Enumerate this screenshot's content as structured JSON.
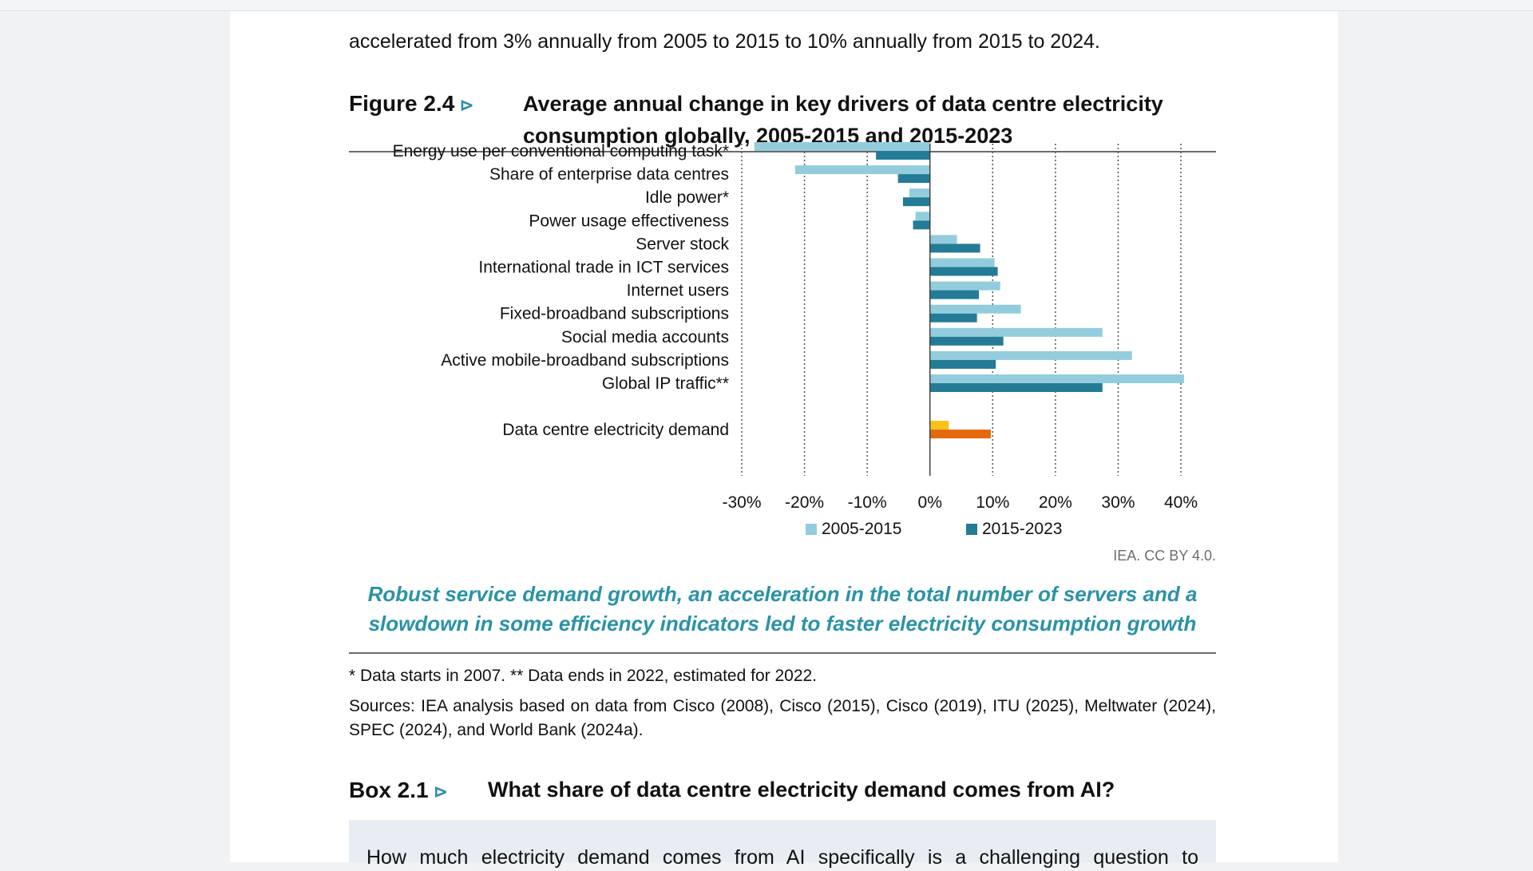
{
  "intro_text": "accelerated from 3% annually from 2005 to 2015 to 10% annually from 2015 to 2024.",
  "figure": {
    "label": "Figure 2.4",
    "marker": "⊳",
    "title": "Average annual change in key drivers of data centre electricity consumption globally, 2005-2015 and 2015-2023"
  },
  "chart_data": {
    "type": "bar",
    "orientation": "horizontal",
    "categories": [
      "Energy use per conventional computing task*",
      "Share of enterprise data centres",
      "Idle power*",
      "Power usage effectiveness",
      "Server stock",
      "International trade in ICT services",
      "Internet users",
      "Fixed-broadband subscriptions",
      "Social media accounts",
      "Active mobile-broadband subscriptions",
      "Global IP traffic**",
      "Data centre electricity demand"
    ],
    "series": [
      {
        "name": "2005-2015",
        "color": "#93cddd",
        "values": [
          -28,
          -21.5,
          -3.3,
          -2.3,
          4.3,
          10.3,
          11.2,
          14.5,
          27.5,
          32.2,
          40.5,
          3
        ]
      },
      {
        "name": "2015-2023",
        "color": "#247b96",
        "values": [
          -8.6,
          -5.1,
          -4.3,
          -2.7,
          8,
          10.8,
          7.8,
          7.5,
          11.7,
          10.5,
          27.5,
          9.7
        ]
      }
    ],
    "highlight_colors": {
      "Data centre electricity demand": [
        "#f7c21a",
        "#e3680e"
      ]
    },
    "xlim": [
      -30,
      40
    ],
    "xticks": [
      -30,
      -20,
      -10,
      0,
      10,
      20,
      30,
      40
    ],
    "xtick_labels": [
      "-30%",
      "-20%",
      "-10%",
      "0%",
      "10%",
      "20%",
      "30%",
      "40%"
    ],
    "grid": "vertical dotted",
    "legend": "bottom-center"
  },
  "credit": "IEA. CC BY 4.0.",
  "caption": "Robust service demand growth, an acceleration in the total number of servers and a slowdown in some efficiency indicators led to faster electricity consumption growth",
  "note": "* Data starts in 2007. ** Data ends in 2022, estimated for 2022.",
  "sources": "Sources: IEA analysis based on data from Cisco (2008), Cisco (2015), Cisco (2019), ITU (2025), Meltwater (2024), SPEC (2024), and World Bank (2024a).",
  "box": {
    "label": "Box 2.1",
    "marker": "⊳",
    "title": "What share of data centre electricity demand comes from AI?",
    "body": "How much electricity demand comes from AI specifically is a challenging question to"
  }
}
